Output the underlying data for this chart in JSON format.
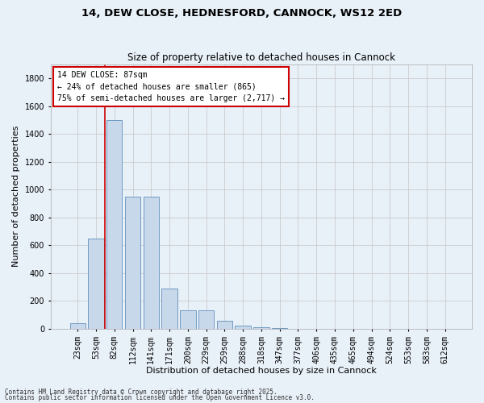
{
  "title": "14, DEW CLOSE, HEDNESFORD, CANNOCK, WS12 2ED",
  "subtitle": "Size of property relative to detached houses in Cannock",
  "xlabel": "Distribution of detached houses by size in Cannock",
  "ylabel": "Number of detached properties",
  "categories": [
    "23sqm",
    "53sqm",
    "82sqm",
    "112sqm",
    "141sqm",
    "171sqm",
    "200sqm",
    "229sqm",
    "259sqm",
    "288sqm",
    "318sqm",
    "347sqm",
    "377sqm",
    "406sqm",
    "435sqm",
    "465sqm",
    "494sqm",
    "524sqm",
    "553sqm",
    "583sqm",
    "612sqm"
  ],
  "values": [
    40,
    650,
    1500,
    950,
    950,
    290,
    130,
    130,
    55,
    22,
    12,
    5,
    2,
    2,
    1,
    1,
    1,
    0,
    0,
    0,
    0
  ],
  "bar_color": "#c8d8eb",
  "bar_edge_color": "#6090bb",
  "vline_x": 1.5,
  "vline_color": "#cc0000",
  "annotation_box_text": "14 DEW CLOSE: 87sqm\n← 24% of detached houses are smaller (865)\n75% of semi-detached houses are larger (2,717) →",
  "box_edge_color": "#cc0000",
  "box_face_color": "#ffffff",
  "ylim": [
    0,
    1900
  ],
  "yticks": [
    0,
    200,
    400,
    600,
    800,
    1000,
    1200,
    1400,
    1600,
    1800
  ],
  "grid_color": "#cccccc",
  "bg_color": "#e8f0f8",
  "footer_line1": "Contains HM Land Registry data © Crown copyright and database right 2025.",
  "footer_line2": "Contains public sector information licensed under the Open Government Licence v3.0.",
  "title_fontsize": 9.5,
  "subtitle_fontsize": 8.5,
  "xlabel_fontsize": 8,
  "ylabel_fontsize": 8,
  "annot_fontsize": 7,
  "tick_fontsize": 7,
  "footer_fontsize": 5.5
}
